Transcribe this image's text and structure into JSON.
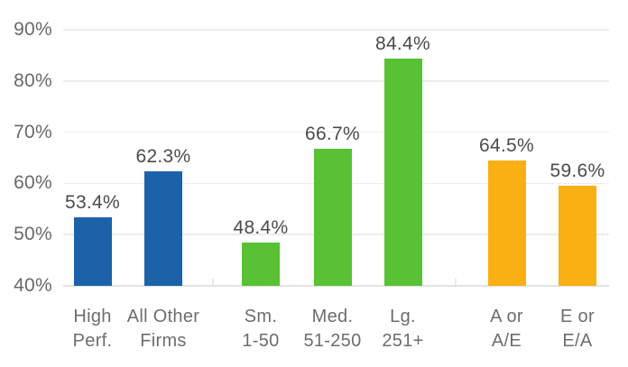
{
  "chart_data": {
    "type": "bar",
    "title": "",
    "xlabel": "",
    "ylabel": "",
    "ylim": [
      40,
      90
    ],
    "grid": true,
    "legend": false,
    "yticks": [
      {
        "label": "40%",
        "value": 40
      },
      {
        "label": "50%",
        "value": 50
      },
      {
        "label": "60%",
        "value": 60
      },
      {
        "label": "70%",
        "value": 70
      },
      {
        "label": "80%",
        "value": 80
      },
      {
        "label": "90%",
        "value": 90
      }
    ],
    "colors": {
      "blue": "#1c62a9",
      "green": "#58c134",
      "orange": "#f9b013"
    },
    "categories": [
      "High Perf.",
      "All Other Firms",
      "Sm. 1-50",
      "Med. 51-250",
      "Lg. 251+",
      "A or A/E",
      "E or E/A"
    ],
    "values": [
      53.4,
      62.3,
      48.4,
      66.7,
      84.4,
      64.5,
      59.6
    ],
    "bars": [
      {
        "id": "high-perf",
        "category": "High Perf.",
        "label_lines": [
          "High",
          "Perf."
        ],
        "value": 53.4,
        "display": "53.4%",
        "color": "blue",
        "group": 0
      },
      {
        "id": "all-other-firms",
        "category": "All Other Firms",
        "label_lines": [
          "All Other",
          "Firms"
        ],
        "value": 62.3,
        "display": "62.3%",
        "color": "blue",
        "group": 0
      },
      {
        "id": "sm-1-50",
        "category": "Sm. 1-50",
        "label_lines": [
          "Sm.",
          "1-50"
        ],
        "value": 48.4,
        "display": "48.4%",
        "color": "green",
        "group": 1
      },
      {
        "id": "med-51-250",
        "category": "Med. 51-250",
        "label_lines": [
          "Med.",
          "51-250"
        ],
        "value": 66.7,
        "display": "66.7%",
        "color": "green",
        "group": 1
      },
      {
        "id": "lg-251-plus",
        "category": "Lg. 251+",
        "label_lines": [
          "Lg.",
          "251+"
        ],
        "value": 84.4,
        "display": "84.4%",
        "color": "green",
        "group": 1
      },
      {
        "id": "a-or-ae",
        "category": "A or A/E",
        "label_lines": [
          "A or",
          "A/E"
        ],
        "value": 64.5,
        "display": "64.5%",
        "color": "orange",
        "group": 2
      },
      {
        "id": "e-or-ea",
        "category": "E or E/A",
        "label_lines": [
          "E or",
          "E/A"
        ],
        "value": 59.6,
        "display": "59.6%",
        "color": "orange",
        "group": 2
      }
    ]
  }
}
